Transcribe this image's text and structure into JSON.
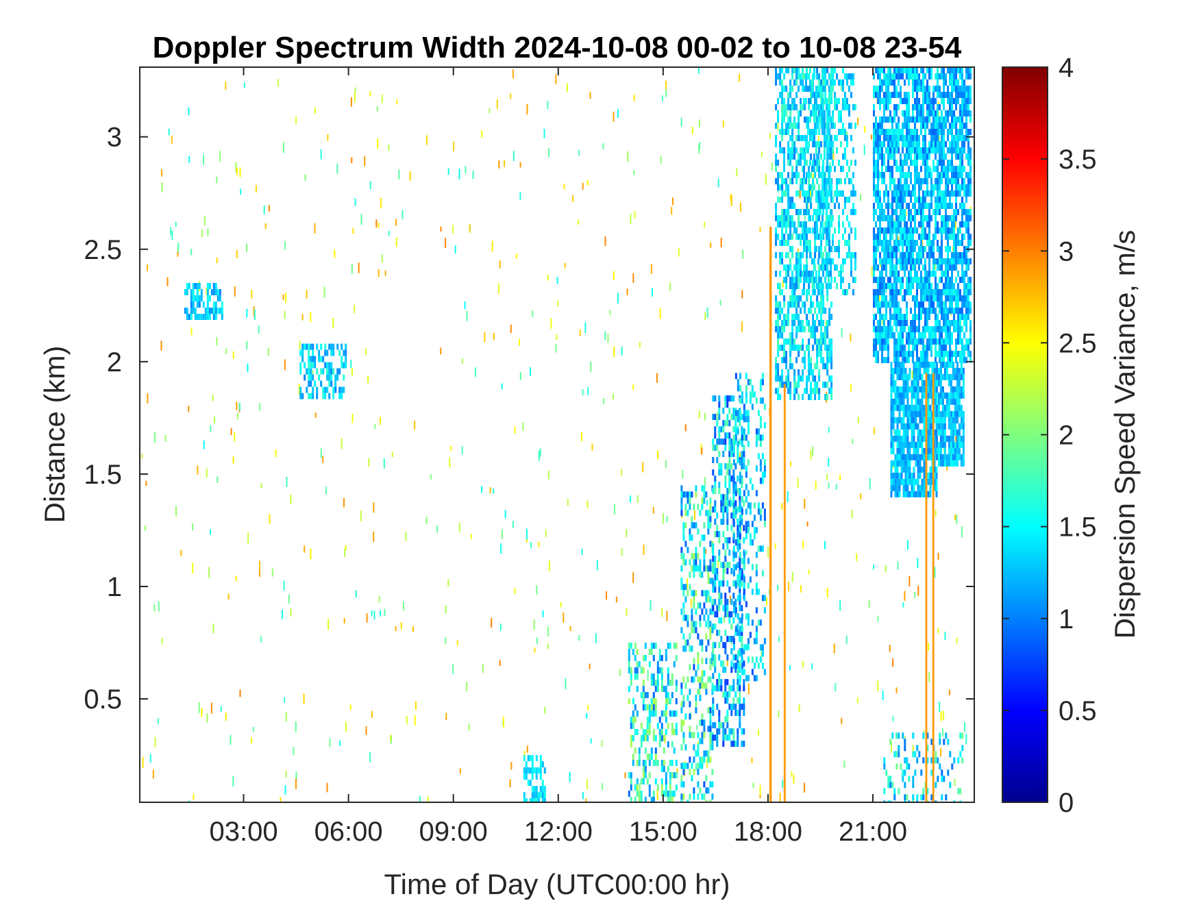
{
  "chart_data": {
    "type": "heatmap",
    "title": "Doppler Spectrum Width 2024-10-08 00-02 to 10-08 23-54",
    "xlabel": "Time of Day (UTC00:00 hr)",
    "ylabel": "Distance (km)",
    "x_unit": "hours (UTC)",
    "xlim": [
      0.03,
      23.9
    ],
    "ylim": [
      0.04,
      3.31
    ],
    "x_ticks": [
      {
        "value": 3,
        "label": "03:00"
      },
      {
        "value": 6,
        "label": "06:00"
      },
      {
        "value": 9,
        "label": "09:00"
      },
      {
        "value": 12,
        "label": "12:00"
      },
      {
        "value": 15,
        "label": "15:00"
      },
      {
        "value": 18,
        "label": "18:00"
      },
      {
        "value": 21,
        "label": "21:00"
      }
    ],
    "y_ticks": [
      {
        "value": 0.5,
        "label": "0.5"
      },
      {
        "value": 1,
        "label": "1"
      },
      {
        "value": 1.5,
        "label": "1.5"
      },
      {
        "value": 2,
        "label": "2"
      },
      {
        "value": 2.5,
        "label": "2.5"
      },
      {
        "value": 3,
        "label": "3"
      }
    ],
    "colorbar": {
      "label": "Dispersion Speed Variance, m/s",
      "range": [
        0,
        4
      ],
      "colormap": "jet",
      "ticks": [
        {
          "value": 0,
          "label": "0"
        },
        {
          "value": 0.5,
          "label": "0.5"
        },
        {
          "value": 1,
          "label": "1"
        },
        {
          "value": 1.5,
          "label": "1.5"
        },
        {
          "value": 2,
          "label": "2"
        },
        {
          "value": 2.5,
          "label": "2.5"
        },
        {
          "value": 3,
          "label": "3"
        },
        {
          "value": 3.5,
          "label": "3.5"
        },
        {
          "value": 4,
          "label": "4"
        }
      ]
    },
    "grid": false,
    "regions": [
      {
        "x_range": [
          1.3,
          2.4
        ],
        "y_range": [
          2.2,
          2.35
        ],
        "value_range": [
          1.0,
          1.6
        ],
        "density": 0.55
      },
      {
        "x_range": [
          4.6,
          5.9
        ],
        "y_range": [
          1.85,
          2.08
        ],
        "value_range": [
          1.0,
          1.7
        ],
        "density": 0.5
      },
      {
        "x_range": [
          11.0,
          11.6
        ],
        "y_range": [
          0.04,
          0.25
        ],
        "value_range": [
          1.2,
          1.6
        ],
        "density": 0.6
      },
      {
        "x_range": [
          14.0,
          15.4
        ],
        "y_range": [
          0.04,
          0.75
        ],
        "value_range": [
          0.9,
          2.2
        ],
        "density": 0.35
      },
      {
        "x_range": [
          15.5,
          16.4
        ],
        "y_range": [
          0.04,
          1.45
        ],
        "value_range": [
          0.8,
          2.2
        ],
        "density": 0.35
      },
      {
        "x_range": [
          16.4,
          17.3
        ],
        "y_range": [
          0.3,
          1.85
        ],
        "value_range": [
          0.7,
          1.9
        ],
        "density": 0.45
      },
      {
        "x_range": [
          17.0,
          17.9
        ],
        "y_range": [
          0.6,
          1.95
        ],
        "value_range": [
          0.8,
          1.8
        ],
        "density": 0.3
      },
      {
        "x_range": [
          18.2,
          19.8
        ],
        "y_range": [
          1.85,
          3.31
        ],
        "value_range": [
          1.0,
          1.8
        ],
        "density": 0.55
      },
      {
        "x_range": [
          19.0,
          20.5
        ],
        "y_range": [
          2.3,
          3.31
        ],
        "value_range": [
          1.1,
          1.7
        ],
        "density": 0.35
      },
      {
        "x_range": [
          21.0,
          23.8
        ],
        "y_range": [
          2.0,
          3.31
        ],
        "value_range": [
          0.9,
          1.6
        ],
        "density": 0.75
      },
      {
        "x_range": [
          21.5,
          22.8
        ],
        "y_range": [
          1.4,
          2.0
        ],
        "value_range": [
          1.0,
          1.5
        ],
        "density": 0.8
      },
      {
        "x_range": [
          22.8,
          23.6
        ],
        "y_range": [
          1.55,
          2.0
        ],
        "value_range": [
          1.0,
          1.5
        ],
        "density": 0.8
      },
      {
        "x_range": [
          21.3,
          23.6
        ],
        "y_range": [
          0.04,
          0.35
        ],
        "value_range": [
          0.9,
          2.0
        ],
        "density": 0.2
      }
    ],
    "vertical_bands": [
      {
        "x": 18.1,
        "width": 0.12,
        "y_range": [
          0.04,
          2.6
        ],
        "value": 2.9
      },
      {
        "x": 18.5,
        "width": 0.1,
        "y_range": [
          0.04,
          1.9
        ],
        "value": 2.9
      },
      {
        "x": 22.55,
        "width": 0.1,
        "y_range": [
          0.04,
          1.95
        ],
        "value": 2.9
      },
      {
        "x": 22.75,
        "width": 0.1,
        "y_range": [
          0.04,
          1.95
        ],
        "value": 2.9
      }
    ],
    "sparse_noise": {
      "x_range": [
        0.03,
        23.9
      ],
      "y_range": [
        0.04,
        3.31
      ],
      "value_range": [
        1.5,
        3.0
      ],
      "density": "low"
    }
  }
}
